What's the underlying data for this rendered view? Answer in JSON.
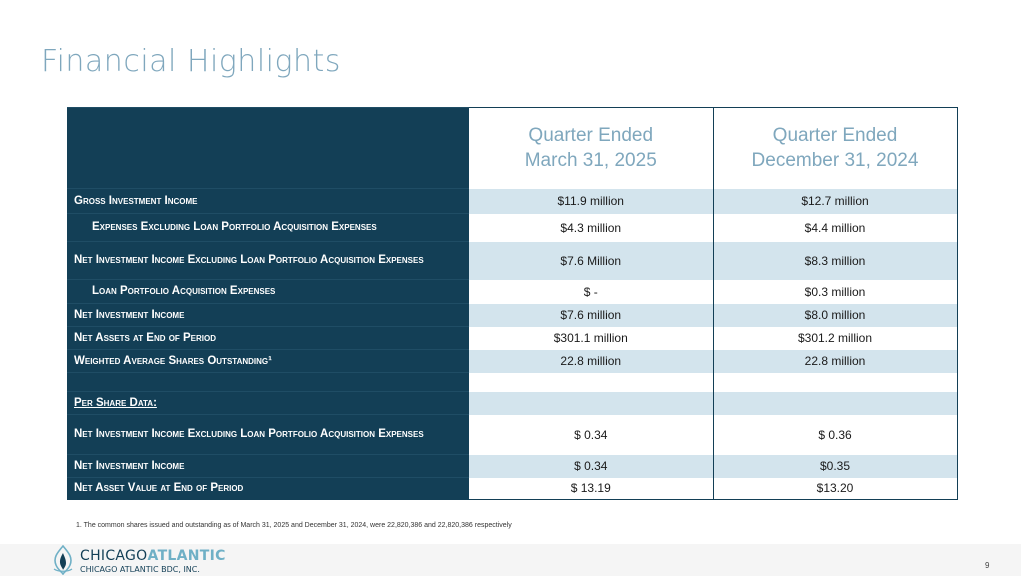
{
  "title": "Financial Highlights",
  "header": {
    "col1_line1": "Quarter Ended",
    "col1_line2": "March 31, 2025",
    "col2_line1": "Quarter Ended",
    "col2_line2": "December 31, 2024"
  },
  "rows": [
    {
      "label": "Gross Investment Income",
      "q1": "$11.9 million",
      "q2": "$12.7 million"
    },
    {
      "label": "Expenses Excluding Loan Portfolio Acquisition Expenses",
      "q1": "$4.3 million",
      "q2": "$4.4 million"
    },
    {
      "label": "Net Investment Income Excluding Loan Portfolio Acquisition Expenses",
      "q1": "$7.6 Million",
      "q2": "$8.3 million"
    },
    {
      "label": "Loan Portfolio Acquisition Expenses",
      "q1": "$ -",
      "q2": "$0.3 million"
    },
    {
      "label": "Net Investment Income",
      "q1": "$7.6 million",
      "q2": "$8.0 million"
    },
    {
      "label": "Net Assets at End of Period",
      "q1": "$301.1 million",
      "q2": "$301.2 million"
    },
    {
      "label": "Weighted Average Shares Outstanding¹",
      "q1": "22.8 million",
      "q2": "22.8 million"
    },
    {
      "label": "",
      "q1": "",
      "q2": ""
    },
    {
      "label": "Per Share Data:",
      "q1": "",
      "q2": ""
    },
    {
      "label": "Net Investment Income Excluding Loan Portfolio Acquisition Expenses",
      "q1": "$ 0.34",
      "q2": "$ 0.36"
    },
    {
      "label": "Net Investment Income",
      "q1": "$ 0.34",
      "q2": "$0.35"
    },
    {
      "label": "Net Asset Value at End of Period",
      "q1": "$ 13.19",
      "q2": "$13.20"
    }
  ],
  "footnote": "1. The common shares issued and outstanding as of March 31, 2025 and December 31, 2024, were 22,820,386 and 22,820,386 respectively",
  "logo": {
    "name_part1": "CHICAGO",
    "name_part2": "ATLANTIC",
    "subtitle": "CHICAGO ATLANTIC BDC, INC."
  },
  "page_number": "9",
  "colors": {
    "navy": "#133f56",
    "title_blue": "#7fa7bd",
    "shade": "#d3e4ed",
    "accent": "#6fb0c6"
  }
}
